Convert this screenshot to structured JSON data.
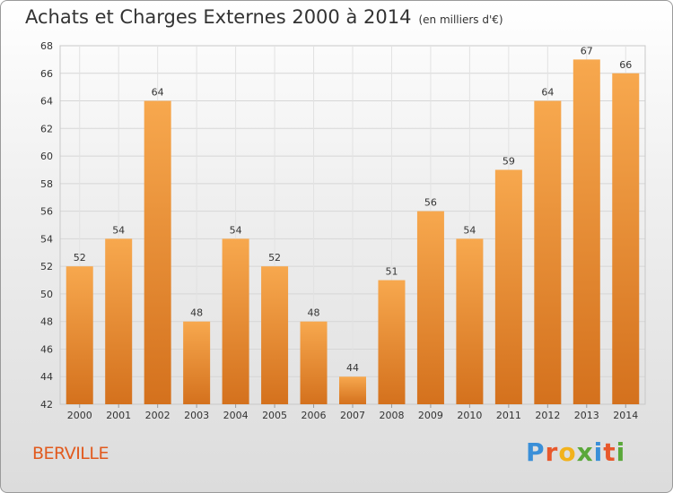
{
  "chart_data": {
    "type": "bar",
    "title": "Achats et Charges Externes 2000 à 2014",
    "unit": "(en milliers d'€)",
    "categories": [
      "2000",
      "2001",
      "2002",
      "2003",
      "2004",
      "2005",
      "2006",
      "2007",
      "2008",
      "2009",
      "2010",
      "2011",
      "2012",
      "2013",
      "2014"
    ],
    "values": [
      52,
      54,
      64,
      48,
      54,
      52,
      48,
      44,
      51,
      56,
      54,
      59,
      64,
      67,
      66
    ],
    "ylim": [
      42,
      68
    ],
    "yticks": [
      42,
      44,
      46,
      48,
      50,
      52,
      54,
      56,
      58,
      60,
      62,
      64,
      66,
      68
    ],
    "grid": true,
    "bar_color_top": "#f7a84e",
    "bar_color_bottom": "#d4711d"
  },
  "location": "BERVILLE",
  "logo": {
    "text": "Proxiti",
    "letters": [
      {
        "ch": "P",
        "color": "#3a8fd8"
      },
      {
        "ch": "r",
        "color": "#e8582b"
      },
      {
        "ch": "o",
        "color": "#f2b21c"
      },
      {
        "ch": "x",
        "color": "#5aa83a"
      },
      {
        "ch": "i",
        "color": "#3a8fd8"
      },
      {
        "ch": "t",
        "color": "#e8582b"
      },
      {
        "ch": "i",
        "color": "#5aa83a"
      }
    ]
  }
}
